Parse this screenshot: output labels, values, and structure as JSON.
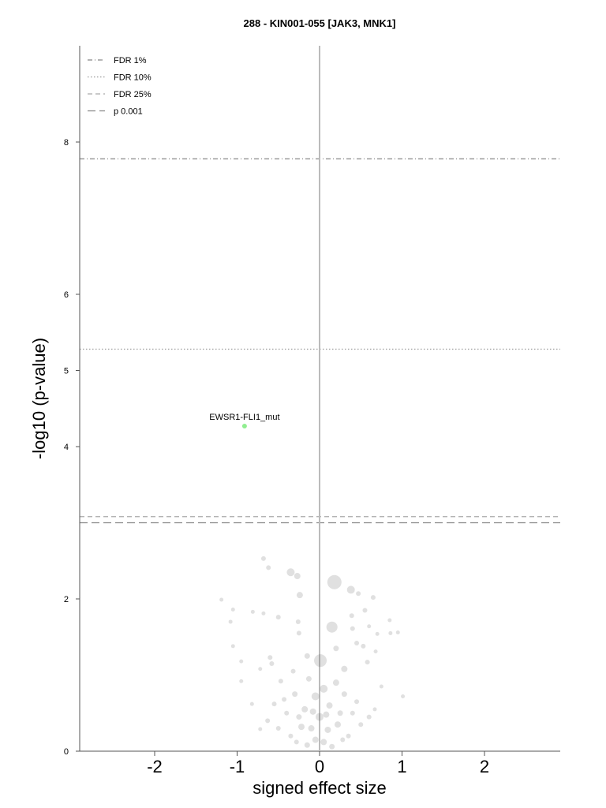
{
  "chart_data": {
    "type": "scatter",
    "title": "288 - KIN001-055 [JAK3, MNK1]",
    "xlabel": "signed effect size",
    "ylabel": "-log10 (p-value)",
    "xlim": [
      -2.9,
      2.9
    ],
    "ylim": [
      0,
      9.25
    ],
    "x_ticks": [
      -2,
      -1,
      0,
      1,
      2
    ],
    "x_tick_labels": [
      "-2",
      "-1",
      "0",
      "1",
      "2"
    ],
    "y_ticks": [
      0,
      2,
      4,
      5,
      6,
      8
    ],
    "y_tick_labels": [
      "0",
      "2",
      "4",
      "5",
      "6",
      "8"
    ],
    "grid": false,
    "legend_position": "top-left",
    "thresholds": [
      {
        "name": "FDR 1%",
        "y": 7.78,
        "style": "dashdot",
        "color": "#888888"
      },
      {
        "name": "FDR 10%",
        "y": 5.28,
        "style": "dotted",
        "color": "#999999"
      },
      {
        "name": "FDR 25%",
        "y": 3.08,
        "style": "dashed",
        "color": "#aaaaaa"
      },
      {
        "name": "p 0.001",
        "y": 3.0,
        "style": "longdash",
        "color": "#888888"
      }
    ],
    "highlighted": [
      {
        "label": "EWSR1-FLI1_mut",
        "x": -0.91,
        "y": 4.27,
        "color": "#90ee90"
      }
    ],
    "points": [
      {
        "x": 0.18,
        "y": 2.22,
        "s": 9
      },
      {
        "x": 0.15,
        "y": 1.63,
        "s": 7
      },
      {
        "x": 0.01,
        "y": 1.19,
        "s": 8
      },
      {
        "x": 0.38,
        "y": 2.12,
        "s": 5
      },
      {
        "x": -0.35,
        "y": 2.35,
        "s": 5
      },
      {
        "x": -0.27,
        "y": 2.3,
        "s": 4
      },
      {
        "x": -0.24,
        "y": 2.05,
        "s": 4
      },
      {
        "x": -0.68,
        "y": 2.53,
        "s": 3
      },
      {
        "x": -0.62,
        "y": 2.41,
        "s": 3
      },
      {
        "x": 0.47,
        "y": 2.07,
        "s": 3
      },
      {
        "x": 0.65,
        "y": 2.02,
        "s": 3
      },
      {
        "x": 0.55,
        "y": 1.85,
        "s": 3
      },
      {
        "x": -1.19,
        "y": 1.99,
        "s": 2.5
      },
      {
        "x": -1.05,
        "y": 1.86,
        "s": 2.5
      },
      {
        "x": -1.08,
        "y": 1.7,
        "s": 2.5
      },
      {
        "x": -0.81,
        "y": 1.83,
        "s": 2.5
      },
      {
        "x": -0.68,
        "y": 1.81,
        "s": 2.5
      },
      {
        "x": -0.5,
        "y": 1.76,
        "s": 3
      },
      {
        "x": -0.26,
        "y": 1.7,
        "s": 3
      },
      {
        "x": -0.25,
        "y": 1.55,
        "s": 3
      },
      {
        "x": 0.39,
        "y": 1.78,
        "s": 3
      },
      {
        "x": 0.4,
        "y": 1.61,
        "s": 3
      },
      {
        "x": 0.6,
        "y": 1.64,
        "s": 2.5
      },
      {
        "x": 0.7,
        "y": 1.54,
        "s": 2.5
      },
      {
        "x": 0.85,
        "y": 1.72,
        "s": 2.5
      },
      {
        "x": 0.86,
        "y": 1.55,
        "s": 2.5
      },
      {
        "x": 0.95,
        "y": 1.56,
        "s": 2.5
      },
      {
        "x": -1.05,
        "y": 1.38,
        "s": 2.5
      },
      {
        "x": -0.95,
        "y": 1.18,
        "s": 2.5
      },
      {
        "x": -0.95,
        "y": 0.92,
        "s": 2.5
      },
      {
        "x": -0.72,
        "y": 1.08,
        "s": 2.5
      },
      {
        "x": 1.01,
        "y": 0.72,
        "s": 2.5
      },
      {
        "x": 0.68,
        "y": 1.31,
        "s": 2.5
      },
      {
        "x": 0.75,
        "y": 0.85,
        "s": 2.5
      },
      {
        "x": 0.67,
        "y": 0.55,
        "s": 2.5
      },
      {
        "x": -0.82,
        "y": 0.62,
        "s": 2.5
      },
      {
        "x": -0.72,
        "y": 0.29,
        "s": 2.5
      },
      {
        "x": -0.55,
        "y": 0.62,
        "s": 3
      },
      {
        "x": -0.6,
        "y": 1.23,
        "s": 3
      },
      {
        "x": -0.58,
        "y": 1.15,
        "s": 3
      },
      {
        "x": -0.47,
        "y": 0.92,
        "s": 3
      },
      {
        "x": -0.32,
        "y": 1.05,
        "s": 3
      },
      {
        "x": 0.53,
        "y": 1.38,
        "s": 3
      },
      {
        "x": 0.58,
        "y": 1.17,
        "s": 3
      },
      {
        "x": 0.3,
        "y": 1.08,
        "s": 4
      },
      {
        "x": 0.45,
        "y": 1.42,
        "s": 3
      },
      {
        "x": 0.2,
        "y": 1.35,
        "s": 3.5
      },
      {
        "x": -0.15,
        "y": 1.25,
        "s": 3.5
      },
      {
        "x": -0.13,
        "y": 0.95,
        "s": 3.5
      },
      {
        "x": -0.05,
        "y": 0.72,
        "s": 5
      },
      {
        "x": 0.05,
        "y": 0.82,
        "s": 5
      },
      {
        "x": 0.12,
        "y": 0.6,
        "s": 4
      },
      {
        "x": -0.18,
        "y": 0.55,
        "s": 4
      },
      {
        "x": 0.2,
        "y": 0.9,
        "s": 4
      },
      {
        "x": 0.3,
        "y": 0.75,
        "s": 3.5
      },
      {
        "x": -0.3,
        "y": 0.75,
        "s": 3.5
      },
      {
        "x": -0.4,
        "y": 0.5,
        "s": 3
      },
      {
        "x": 0.4,
        "y": 0.5,
        "s": 3
      },
      {
        "x": 0.5,
        "y": 0.35,
        "s": 3
      },
      {
        "x": -0.5,
        "y": 0.3,
        "s": 3
      },
      {
        "x": -0.35,
        "y": 0.2,
        "s": 3
      },
      {
        "x": 0.35,
        "y": 0.2,
        "s": 3
      },
      {
        "x": -0.22,
        "y": 0.32,
        "s": 4
      },
      {
        "x": 0.22,
        "y": 0.35,
        "s": 4
      },
      {
        "x": -0.1,
        "y": 0.3,
        "s": 4
      },
      {
        "x": 0.1,
        "y": 0.28,
        "s": 4
      },
      {
        "x": -0.05,
        "y": 0.15,
        "s": 4
      },
      {
        "x": 0.05,
        "y": 0.12,
        "s": 4
      },
      {
        "x": -0.15,
        "y": 0.08,
        "s": 3.5
      },
      {
        "x": 0.15,
        "y": 0.06,
        "s": 3.5
      },
      {
        "x": 0.0,
        "y": 0.45,
        "s": 5
      },
      {
        "x": -0.08,
        "y": 0.52,
        "s": 4
      },
      {
        "x": 0.08,
        "y": 0.48,
        "s": 4
      },
      {
        "x": 0.25,
        "y": 0.5,
        "s": 3.5
      },
      {
        "x": -0.25,
        "y": 0.45,
        "s": 3.5
      },
      {
        "x": 0.28,
        "y": 0.15,
        "s": 3
      },
      {
        "x": -0.28,
        "y": 0.12,
        "s": 3
      },
      {
        "x": 0.6,
        "y": 0.45,
        "s": 3
      },
      {
        "x": -0.63,
        "y": 0.4,
        "s": 3
      },
      {
        "x": 0.45,
        "y": 0.65,
        "s": 3
      },
      {
        "x": -0.43,
        "y": 0.68,
        "s": 3
      }
    ]
  }
}
